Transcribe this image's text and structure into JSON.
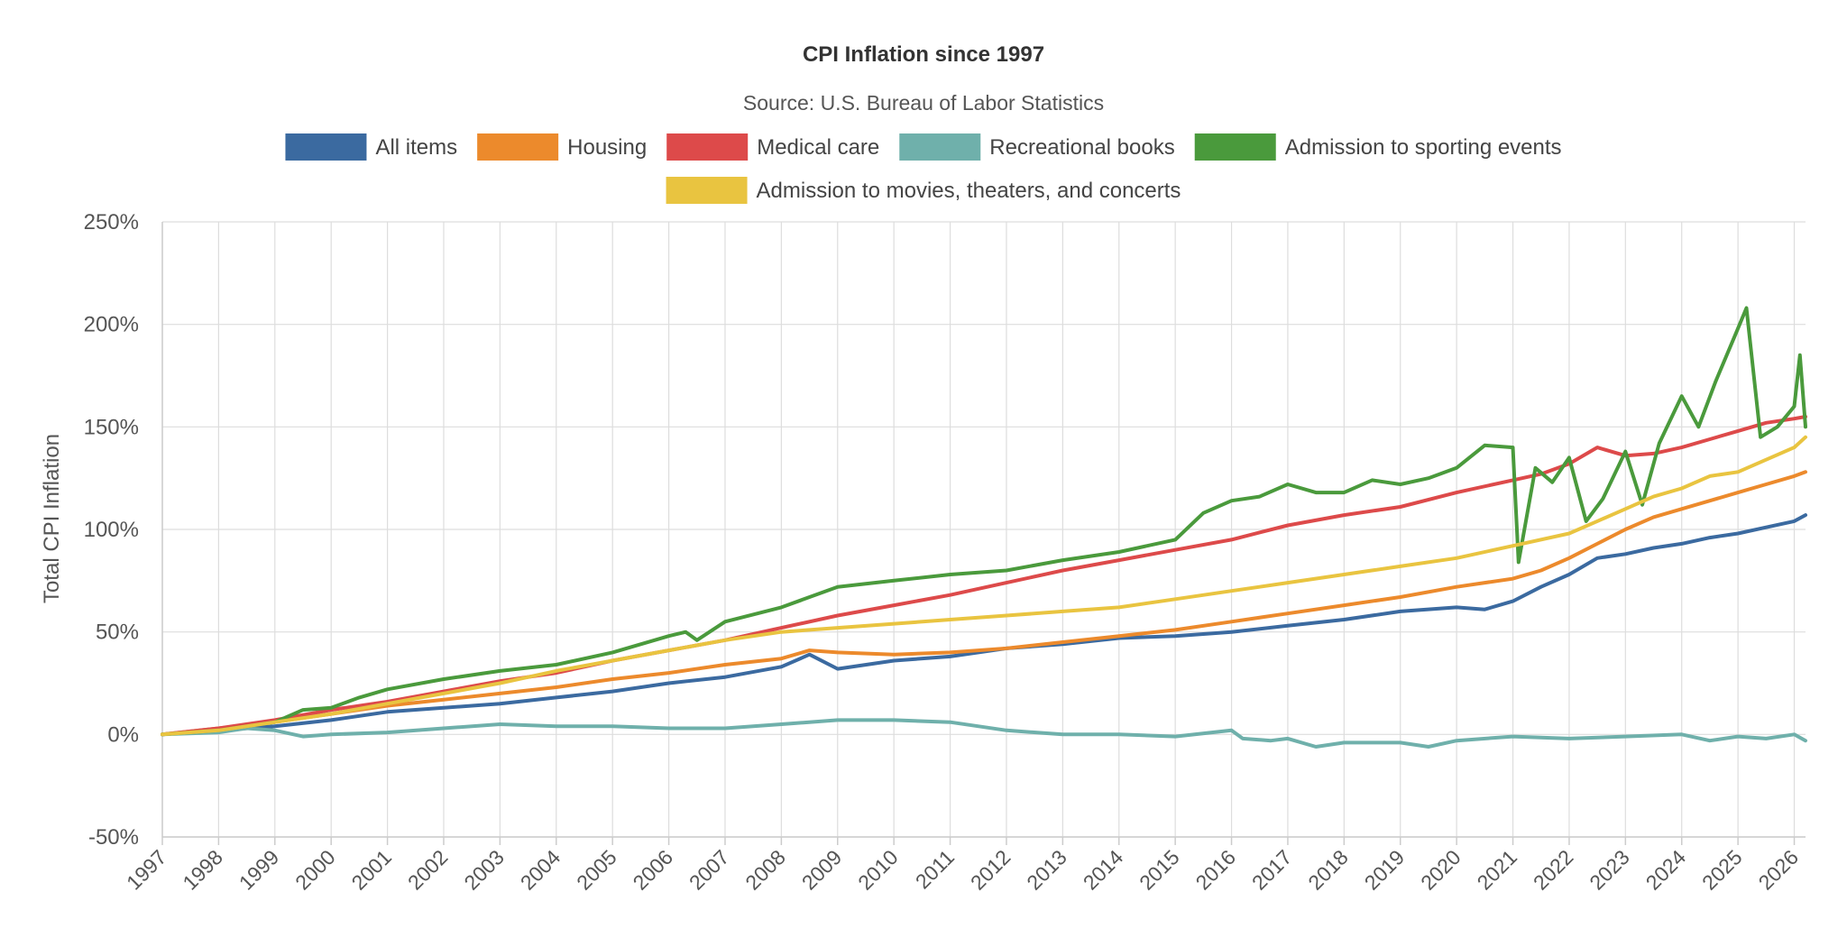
{
  "chart_data": {
    "type": "line",
    "title": "CPI Inflation since 1997",
    "subtitle": "Source: U.S. Bureau of Labor Statistics",
    "xlabel": "",
    "ylabel": "Total CPI Inflation",
    "xlim": [
      1997,
      2026.2
    ],
    "ylim": [
      -50,
      250
    ],
    "yticks": [
      -50,
      0,
      50,
      100,
      150,
      200,
      250
    ],
    "ytick_labels": [
      "-50%",
      "0%",
      "50%",
      "100%",
      "150%",
      "200%",
      "250%"
    ],
    "xtick_labels": [
      "1997",
      "1998",
      "1999",
      "2000",
      "2001",
      "2002",
      "2003",
      "2004",
      "2005",
      "2006",
      "2007",
      "2008",
      "2009",
      "2010",
      "2011",
      "2012",
      "2013",
      "2014",
      "2015",
      "2016",
      "2017",
      "2018",
      "2019",
      "2020",
      "2021",
      "2022",
      "2023",
      "2024",
      "2025",
      "2026"
    ],
    "grid": true,
    "legend_position": "top",
    "series": [
      {
        "name": "All items",
        "color": "#3b6aa0",
        "x": [
          1997,
          1998,
          1999,
          2000,
          2001,
          2002,
          2003,
          2004,
          2005,
          2006,
          2007,
          2008,
          2008.5,
          2009,
          2010,
          2011,
          2012,
          2013,
          2014,
          2015,
          2016,
          2017,
          2018,
          2019,
          2020,
          2020.5,
          2021,
          2021.5,
          2022,
          2022.5,
          2023,
          2023.5,
          2024,
          2024.5,
          2025,
          2025.5,
          2026,
          2026.2
        ],
        "values": [
          0,
          2,
          4,
          7,
          11,
          13,
          15,
          18,
          21,
          25,
          28,
          33,
          39,
          32,
          36,
          38,
          42,
          44,
          47,
          48,
          50,
          53,
          56,
          60,
          62,
          61,
          65,
          72,
          78,
          86,
          88,
          91,
          93,
          96,
          98,
          101,
          104,
          107
        ]
      },
      {
        "name": "Housing",
        "color": "#ec8a2c",
        "x": [
          1997,
          1998,
          1999,
          2000,
          2001,
          2002,
          2003,
          2004,
          2005,
          2006,
          2007,
          2008,
          2008.5,
          2009,
          2010,
          2011,
          2012,
          2013,
          2014,
          2015,
          2016,
          2017,
          2018,
          2019,
          2020,
          2021,
          2021.5,
          2022,
          2022.5,
          2023,
          2023.5,
          2024,
          2024.5,
          2025,
          2025.5,
          2026,
          2026.2
        ],
        "values": [
          0,
          3,
          6,
          10,
          14,
          17,
          20,
          23,
          27,
          30,
          34,
          37,
          41,
          40,
          39,
          40,
          42,
          45,
          48,
          51,
          55,
          59,
          63,
          67,
          72,
          76,
          80,
          86,
          93,
          100,
          106,
          110,
          114,
          118,
          122,
          126,
          128
        ]
      },
      {
        "name": "Medical care",
        "color": "#dd4a4a",
        "x": [
          1997,
          1998,
          1999,
          2000,
          2001,
          2002,
          2003,
          2004,
          2005,
          2006,
          2007,
          2008,
          2009,
          2010,
          2011,
          2012,
          2013,
          2014,
          2015,
          2016,
          2017,
          2018,
          2019,
          2020,
          2021,
          2021.5,
          2022,
          2022.5,
          2023,
          2023.5,
          2024,
          2024.5,
          2025,
          2025.5,
          2026,
          2026.2
        ],
        "values": [
          0,
          3,
          7,
          12,
          16,
          21,
          26,
          30,
          36,
          41,
          46,
          52,
          58,
          63,
          68,
          74,
          80,
          85,
          90,
          95,
          102,
          107,
          111,
          118,
          124,
          127,
          132,
          140,
          136,
          137,
          140,
          144,
          148,
          152,
          154,
          155
        ]
      },
      {
        "name": "Recreational books",
        "color": "#6fb0ab",
        "x": [
          1997,
          1998,
          1998.5,
          1999,
          1999.5,
          2000,
          2001,
          2002,
          2003,
          2004,
          2005,
          2006,
          2007,
          2008,
          2009,
          2010,
          2011,
          2012,
          2013,
          2014,
          2015,
          2016,
          2016.2,
          2016.7,
          2017,
          2017.5,
          2018,
          2019,
          2019.5,
          2020,
          2021,
          2022,
          2023,
          2024,
          2024.5,
          2025,
          2025.5,
          2026,
          2026.2
        ],
        "values": [
          0,
          1,
          3,
          2,
          -1,
          0,
          1,
          3,
          5,
          4,
          4,
          3,
          3,
          5,
          7,
          7,
          6,
          2,
          0,
          0,
          -1,
          2,
          -2,
          -3,
          -2,
          -6,
          -4,
          -4,
          -6,
          -3,
          -1,
          -2,
          -1,
          0,
          -3,
          -1,
          -2,
          0,
          -3
        ]
      },
      {
        "name": "Admission to sporting events",
        "color": "#4a9a3c",
        "x": [
          1997,
          1998,
          1999,
          1999.5,
          2000,
          2000.5,
          2001,
          2002,
          2003,
          2004,
          2005,
          2006,
          2006.3,
          2006.5,
          2007,
          2008,
          2009,
          2010,
          2011,
          2012,
          2013,
          2014,
          2015,
          2015.5,
          2016,
          2016.5,
          2017,
          2017.5,
          2018,
          2018.5,
          2019,
          2019.5,
          2020,
          2020.5,
          2021,
          2021.1,
          2021.4,
          2021.7,
          2022,
          2022.3,
          2022.6,
          2023,
          2023.3,
          2023.6,
          2024,
          2024.3,
          2024.6,
          2025,
          2025.15,
          2025.4,
          2025.7,
          2026,
          2026.1,
          2026.2
        ],
        "values": [
          0,
          2,
          6,
          12,
          13,
          18,
          22,
          27,
          31,
          34,
          40,
          48,
          50,
          46,
          55,
          62,
          72,
          75,
          78,
          80,
          85,
          89,
          95,
          108,
          114,
          116,
          122,
          118,
          118,
          124,
          122,
          125,
          130,
          141,
          140,
          84,
          130,
          123,
          135,
          104,
          115,
          138,
          112,
          142,
          165,
          150,
          172,
          198,
          208,
          145,
          150,
          160,
          185,
          150
        ]
      },
      {
        "name": "Admission to movies, theaters, and concerts",
        "color": "#e9c440",
        "x": [
          1997,
          1998,
          1999,
          2000,
          2001,
          2002,
          2003,
          2004,
          2005,
          2006,
          2007,
          2008,
          2009,
          2010,
          2011,
          2012,
          2013,
          2014,
          2015,
          2016,
          2017,
          2018,
          2019,
          2020,
          2021,
          2022,
          2022.5,
          2023,
          2023.5,
          2024,
          2024.5,
          2025,
          2025.5,
          2026,
          2026.2
        ],
        "values": [
          0,
          2,
          6,
          10,
          15,
          20,
          25,
          31,
          36,
          41,
          46,
          50,
          52,
          54,
          56,
          58,
          60,
          62,
          66,
          70,
          74,
          78,
          82,
          86,
          92,
          98,
          104,
          110,
          116,
          120,
          126,
          128,
          134,
          140,
          145
        ]
      }
    ]
  }
}
